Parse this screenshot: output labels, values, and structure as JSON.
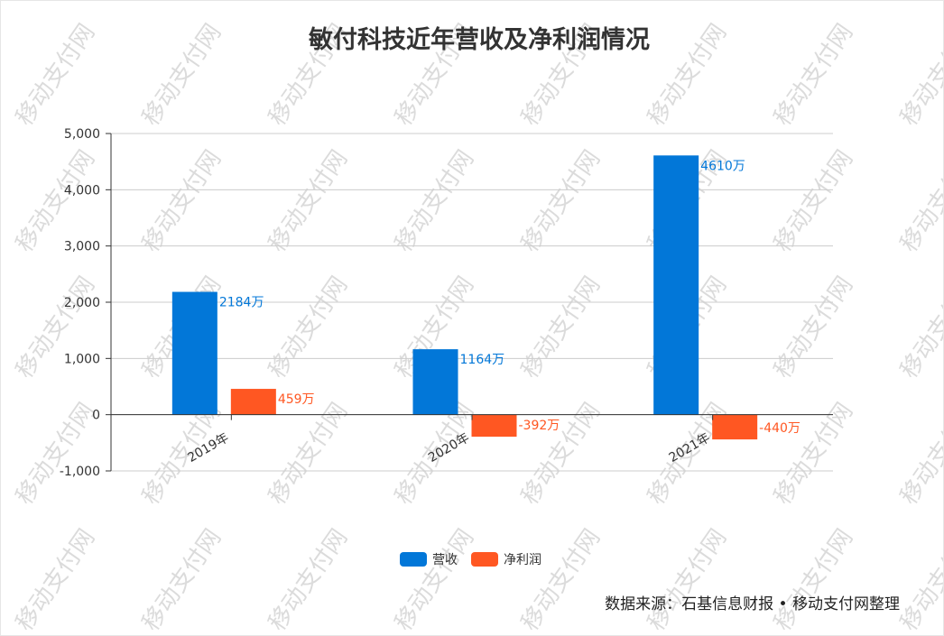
{
  "watermark": "移动支付网",
  "source_note": "数据来源：石基信息财报 • 移动支付网整理",
  "colors": {
    "revenue": "#0277d8",
    "profit": "#ff5722",
    "axis": "#333333",
    "grid": "#cccccc",
    "watermark": "#bdbdbd"
  },
  "chart_data": {
    "type": "bar",
    "title": "敏付科技近年营收及净利润情况",
    "categories": [
      "2019年",
      "2020年",
      "2021年"
    ],
    "series": [
      {
        "name": "营收",
        "values": [
          2184,
          1164,
          4610
        ],
        "labels": [
          "2184万",
          "1164万",
          "4610万"
        ]
      },
      {
        "name": "净利润",
        "values": [
          459,
          -392,
          -440
        ],
        "labels": [
          "459万",
          "-392万",
          "-440万"
        ]
      }
    ],
    "ylim": [
      -1000,
      5000
    ],
    "yticks": [
      -1000,
      0,
      1000,
      2000,
      3000,
      4000,
      5000
    ],
    "ytick_labels": [
      "-1,000",
      "0",
      "1,000",
      "2,000",
      "3,000",
      "4,000",
      "5,000"
    ],
    "grid": true,
    "legend_position": "bottom-center"
  }
}
